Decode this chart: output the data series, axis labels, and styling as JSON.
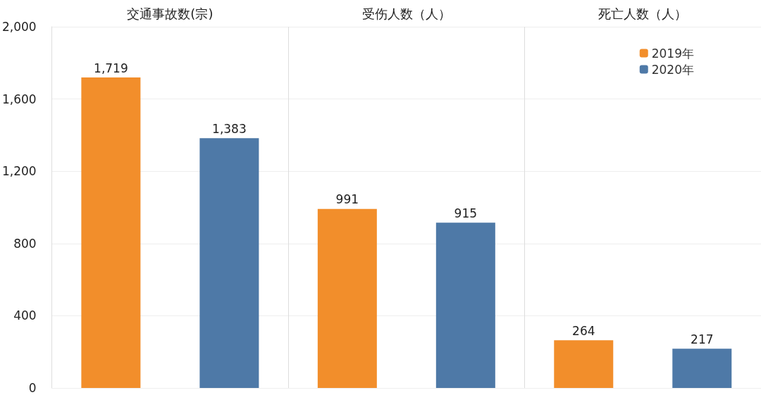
{
  "chart_data": {
    "type": "bar",
    "categories": [
      "交通事故数(宗)",
      "受伤人数（人）",
      "死亡人数（人）"
    ],
    "series": [
      {
        "name": "2019年",
        "color": "#f28e2b",
        "values": [
          1719,
          991,
          264
        ],
        "value_labels": [
          "1,719",
          "991",
          "264"
        ]
      },
      {
        "name": "2020年",
        "color": "#4e79a7",
        "values": [
          1383,
          915,
          217
        ],
        "value_labels": [
          "1,383",
          "915",
          "217"
        ]
      }
    ],
    "ylim": [
      0,
      2000
    ],
    "yticks": [
      0,
      400,
      800,
      {
        "value": 1200,
        "label": "1,200"
      },
      {
        "value": 1600,
        "label": "1,600"
      },
      {
        "value": 2000,
        "label": "2,000"
      }
    ],
    "grid": true,
    "legend": "top right"
  }
}
